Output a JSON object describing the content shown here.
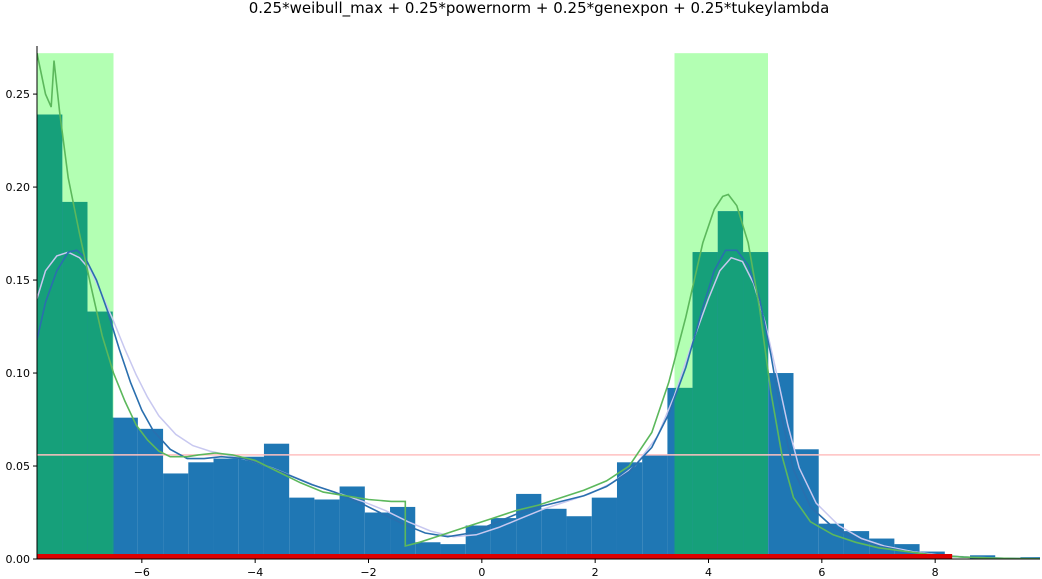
{
  "chart_data": {
    "type": "bar",
    "title": "0.25*weibull_max + 0.25*powernorm + 0.25*genexpon + 0.25*tukeylambda",
    "xlabel": "",
    "ylabel": "",
    "xlim": [
      -7.85,
      9.85
    ],
    "ylim": [
      0,
      0.285
    ],
    "grid": false,
    "legend": "none",
    "x_ticks": [
      -6,
      -4,
      -2,
      0,
      2,
      4,
      6,
      8
    ],
    "x_tick_labels": [
      "−6",
      "−4",
      "−2",
      "0",
      "2",
      "4",
      "6",
      "8"
    ],
    "y_ticks": [
      0.0,
      0.05,
      0.1,
      0.15,
      0.2,
      0.25
    ],
    "y_tick_labels": [
      "0.00",
      "0.05",
      "0.10",
      "0.15",
      "0.20",
      "0.25"
    ],
    "colors": {
      "histogram": "#1f77b4",
      "highlight": "#b3ffb3",
      "overlap": "#16a07a",
      "kde_green": "#5cb85c",
      "kde_blue": "#2a6fae",
      "kde_lavender": "#c8c8f0",
      "hline": "#ffc0c0",
      "rug": "#dd0000"
    },
    "histogram": {
      "bin_edges": [
        -7.85,
        -7.405,
        -6.96,
        -6.515,
        -6.07,
        -5.625,
        -5.18,
        -4.735,
        -4.29,
        -3.845,
        -3.4,
        -2.955,
        -2.51,
        -2.065,
        -1.62,
        -1.175,
        -0.73,
        -0.285,
        0.16,
        0.605,
        1.05,
        1.495,
        1.94,
        2.385,
        2.83,
        3.275,
        3.72,
        4.165,
        4.61,
        5.055,
        5.5,
        5.945,
        6.39,
        6.835,
        7.28,
        7.725,
        8.17,
        8.615,
        9.06,
        9.505,
        9.95
      ],
      "values": [
        0.239,
        0.192,
        0.133,
        0.076,
        0.07,
        0.046,
        0.052,
        0.054,
        0.055,
        0.062,
        0.033,
        0.032,
        0.039,
        0.025,
        0.028,
        0.009,
        0.008,
        0.018,
        0.022,
        0.035,
        0.027,
        0.023,
        0.033,
        0.052,
        0.056,
        0.092,
        0.165,
        0.187,
        0.165,
        0.1,
        0.059,
        0.019,
        0.015,
        0.011,
        0.008,
        0.004,
        0.0,
        0.002,
        0.0,
        0.001
      ]
    },
    "highlight_regions": [
      {
        "x0": -7.85,
        "x1": -6.5,
        "height": 0.272
      },
      {
        "x0": 3.4,
        "x1": 5.05,
        "height": 0.272
      }
    ],
    "hline_y": 0.056,
    "series": [
      {
        "x": [
          -7.85,
          -7.7,
          -7.6,
          -7.55,
          -7.45,
          -7.3,
          -7.1,
          -6.9,
          -6.7,
          -6.5,
          -6.3,
          -6.1,
          -5.9,
          -5.7,
          -5.5,
          -5.2,
          -5.0,
          -4.7,
          -4.4,
          -4.0,
          -3.6,
          -3.2,
          -2.8,
          -2.4,
          -2.0,
          -1.6,
          -1.35,
          -1.35,
          -1.1,
          -0.8,
          -0.5,
          -0.2,
          0.2,
          0.6,
          1.0,
          1.4,
          1.8,
          2.2,
          2.6,
          3.0,
          3.3,
          3.6,
          3.9,
          4.1,
          4.25,
          4.35,
          4.5,
          4.7,
          4.9,
          5.1,
          5.3,
          5.5,
          5.8,
          6.2,
          6.6,
          7.0,
          7.5,
          8.0,
          8.5,
          9.0,
          9.5,
          9.85
        ],
        "y": [
          0.272,
          0.25,
          0.243,
          0.268,
          0.24,
          0.205,
          0.175,
          0.147,
          0.12,
          0.1,
          0.085,
          0.072,
          0.064,
          0.058,
          0.055,
          0.055,
          0.056,
          0.057,
          0.056,
          0.053,
          0.047,
          0.041,
          0.036,
          0.034,
          0.032,
          0.031,
          0.031,
          0.007,
          0.009,
          0.012,
          0.015,
          0.018,
          0.022,
          0.026,
          0.029,
          0.033,
          0.037,
          0.042,
          0.05,
          0.068,
          0.095,
          0.13,
          0.17,
          0.188,
          0.195,
          0.196,
          0.19,
          0.17,
          0.135,
          0.09,
          0.055,
          0.033,
          0.02,
          0.013,
          0.009,
          0.006,
          0.004,
          0.002,
          0.001,
          0.0005,
          0.0002,
          0.0001
        ]
      },
      {
        "x": [
          -7.85,
          -7.7,
          -7.5,
          -7.3,
          -7.15,
          -7.0,
          -6.8,
          -6.6,
          -6.4,
          -6.2,
          -6.0,
          -5.8,
          -5.5,
          -5.2,
          -4.9,
          -4.6,
          -4.2,
          -3.8,
          -3.4,
          -3.0,
          -2.6,
          -2.2,
          -1.8,
          -1.4,
          -1.0,
          -0.6,
          -0.2,
          0.2,
          0.6,
          1.0,
          1.4,
          1.8,
          2.2,
          2.6,
          3.0,
          3.3,
          3.6,
          3.9,
          4.1,
          4.3,
          4.5,
          4.7,
          4.9,
          5.1,
          5.3,
          5.5,
          5.8,
          6.2,
          6.6,
          7.0,
          7.5,
          8.0,
          8.5,
          9.0,
          9.5,
          9.85
        ],
        "y": [
          0.118,
          0.138,
          0.155,
          0.165,
          0.166,
          0.162,
          0.15,
          0.133,
          0.113,
          0.095,
          0.08,
          0.069,
          0.059,
          0.054,
          0.054,
          0.055,
          0.054,
          0.05,
          0.045,
          0.04,
          0.036,
          0.031,
          0.025,
          0.019,
          0.014,
          0.012,
          0.014,
          0.019,
          0.024,
          0.028,
          0.031,
          0.034,
          0.039,
          0.047,
          0.06,
          0.078,
          0.103,
          0.135,
          0.155,
          0.166,
          0.166,
          0.158,
          0.14,
          0.11,
          0.075,
          0.048,
          0.028,
          0.017,
          0.011,
          0.007,
          0.004,
          0.002,
          0.001,
          0.0005,
          0.0002,
          0.0001
        ]
      },
      {
        "x": [
          -7.85,
          -7.7,
          -7.5,
          -7.3,
          -7.1,
          -6.9,
          -6.7,
          -6.5,
          -6.3,
          -6.1,
          -5.9,
          -5.7,
          -5.4,
          -5.1,
          -4.8,
          -4.5,
          -4.1,
          -3.7,
          -3.3,
          -2.9,
          -2.5,
          -2.1,
          -1.7,
          -1.3,
          -0.9,
          -0.5,
          -0.1,
          0.3,
          0.7,
          1.1,
          1.5,
          1.9,
          2.3,
          2.7,
          3.1,
          3.4,
          3.7,
          4.0,
          4.2,
          4.4,
          4.6,
          4.8,
          5.0,
          5.2,
          5.4,
          5.6,
          5.9,
          6.3,
          6.7,
          7.1,
          7.6,
          8.1,
          8.6,
          9.1,
          9.5,
          9.85
        ],
        "y": [
          0.14,
          0.155,
          0.163,
          0.165,
          0.162,
          0.155,
          0.142,
          0.128,
          0.113,
          0.099,
          0.087,
          0.077,
          0.067,
          0.061,
          0.058,
          0.056,
          0.053,
          0.049,
          0.044,
          0.039,
          0.035,
          0.031,
          0.026,
          0.02,
          0.015,
          0.012,
          0.013,
          0.017,
          0.022,
          0.027,
          0.031,
          0.035,
          0.041,
          0.05,
          0.066,
          0.088,
          0.115,
          0.14,
          0.155,
          0.162,
          0.16,
          0.148,
          0.127,
          0.1,
          0.072,
          0.049,
          0.03,
          0.018,
          0.011,
          0.007,
          0.004,
          0.002,
          0.001,
          0.0005,
          0.0002,
          0.0001
        ]
      }
    ],
    "rug_range": [
      -7.85,
      8.3
    ]
  }
}
